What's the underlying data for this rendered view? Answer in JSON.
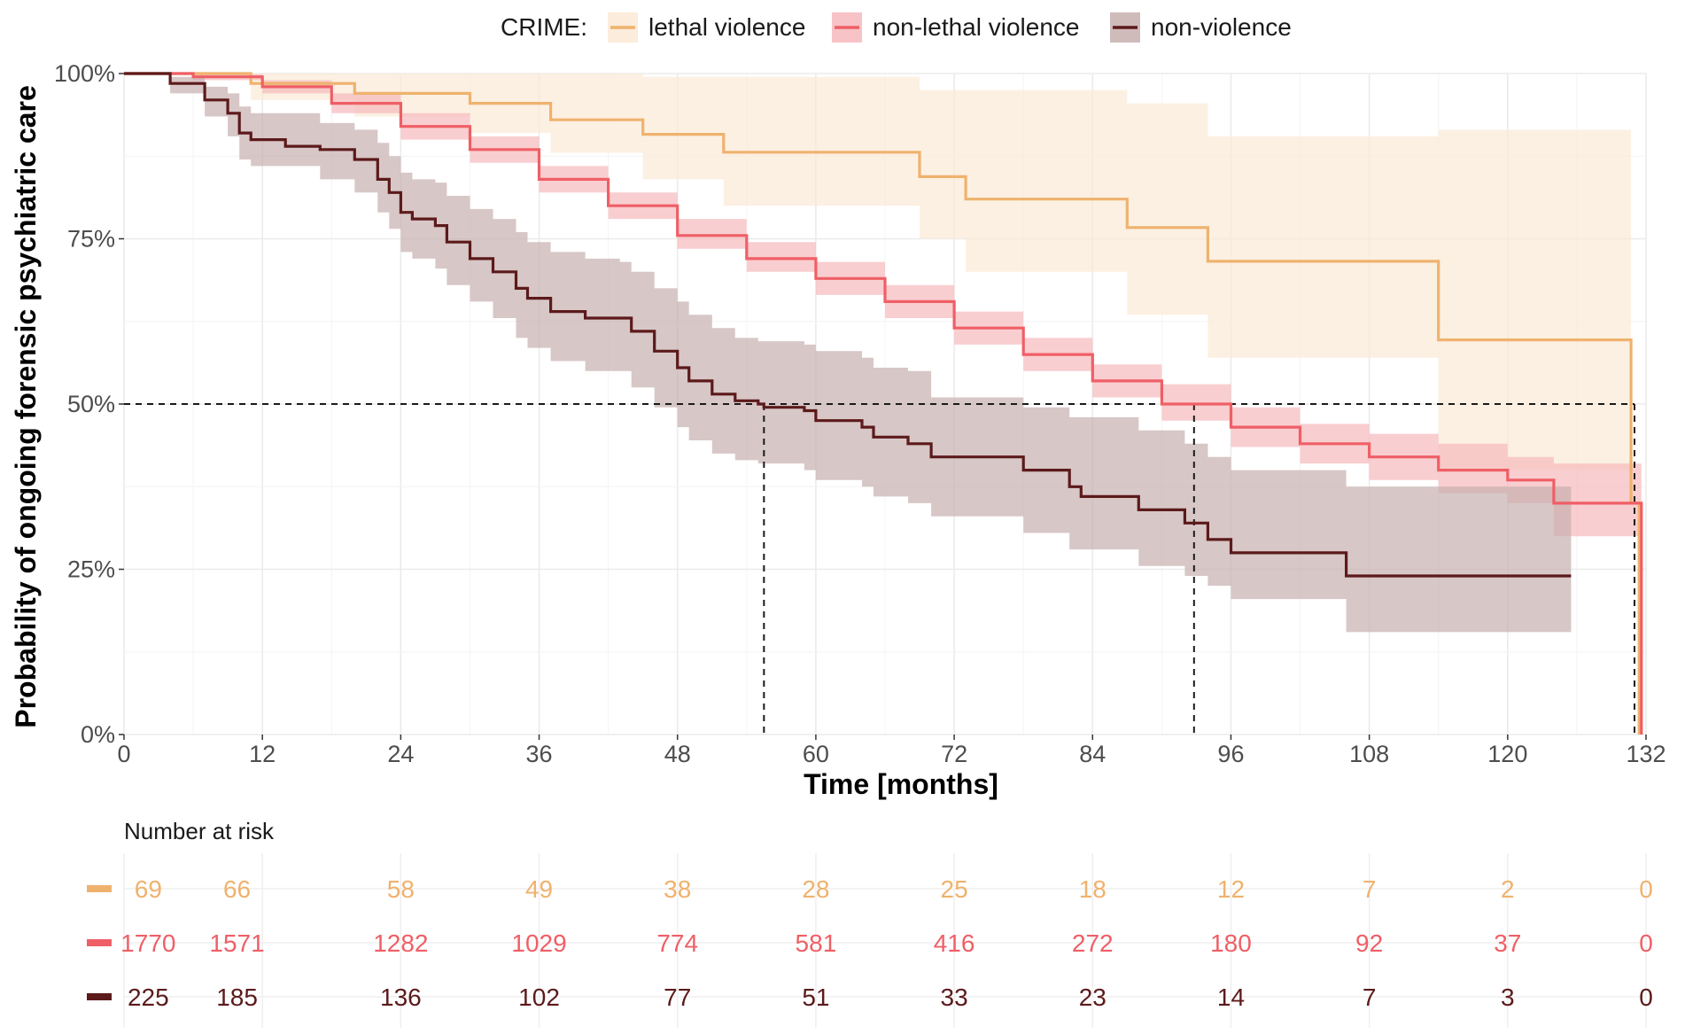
{
  "chart_data": {
    "type": "line",
    "subtype": "kaplan-meier",
    "xlabel": "Time [months]",
    "ylabel": "Probability of ongoing forensic psychiatric care",
    "xlim": [
      0,
      132
    ],
    "ylim": [
      0,
      1
    ],
    "x_ticks": [
      0,
      12,
      24,
      36,
      48,
      60,
      72,
      84,
      96,
      108,
      120,
      132
    ],
    "x_tick_labels": [
      "0",
      "12",
      "24",
      "36",
      "48",
      "60",
      "72",
      "84",
      "96",
      "108",
      "120",
      "132"
    ],
    "y_ticks": [
      0,
      0.25,
      0.5,
      0.75,
      1
    ],
    "y_tick_labels": [
      "0%",
      "25%",
      "50%",
      "75%",
      "100%"
    ],
    "grid": true,
    "legend": {
      "title": "CRIME:",
      "position": "top"
    },
    "median_lines": [
      {
        "series": "non-violence",
        "median_x": 55.5,
        "y": 0.5
      },
      {
        "series": "non-lethal violence",
        "median_x": 92.8,
        "y": 0.5
      },
      {
        "series": "lethal violence",
        "median_x": 131.0,
        "y": 0.5
      }
    ],
    "series": [
      {
        "name": "lethal violence",
        "color": "#EFB26E",
        "band_color": "#FBE9D5",
        "points": [
          [
            0,
            1
          ],
          [
            11,
            1
          ],
          [
            11,
            0.985
          ],
          [
            20,
            0.985
          ],
          [
            20,
            0.97
          ],
          [
            30,
            0.97
          ],
          [
            30,
            0.955
          ],
          [
            37,
            0.955
          ],
          [
            37,
            0.93
          ],
          [
            45,
            0.93
          ],
          [
            45,
            0.908
          ],
          [
            52,
            0.908
          ],
          [
            52,
            0.881
          ],
          [
            69,
            0.881
          ],
          [
            69,
            0.844
          ],
          [
            73,
            0.844
          ],
          [
            73,
            0.81
          ],
          [
            87,
            0.81
          ],
          [
            87,
            0.767
          ],
          [
            94,
            0.767
          ],
          [
            94,
            0.716
          ],
          [
            114,
            0.716
          ],
          [
            114,
            0.597
          ],
          [
            130.7,
            0.597
          ],
          [
            130.7,
            0.35
          ],
          [
            131.4,
            0.35
          ],
          [
            131.4,
            0
          ]
        ],
        "lower": [
          [
            0,
            1
          ],
          [
            11,
            1
          ],
          [
            11,
            0.96
          ],
          [
            20,
            0.96
          ],
          [
            20,
            0.935
          ],
          [
            30,
            0.935
          ],
          [
            30,
            0.91
          ],
          [
            37,
            0.91
          ],
          [
            37,
            0.88
          ],
          [
            45,
            0.88
          ],
          [
            45,
            0.84
          ],
          [
            52,
            0.84
          ],
          [
            52,
            0.8
          ],
          [
            69,
            0.8
          ],
          [
            69,
            0.75
          ],
          [
            73,
            0.75
          ],
          [
            73,
            0.7
          ],
          [
            87,
            0.7
          ],
          [
            87,
            0.635
          ],
          [
            94,
            0.635
          ],
          [
            94,
            0.57
          ],
          [
            114,
            0.57
          ],
          [
            114,
            0.4
          ],
          [
            130.7,
            0.4
          ]
        ],
        "upper": [
          [
            0,
            1
          ],
          [
            45,
            1
          ],
          [
            45,
            0.995
          ],
          [
            69,
            0.995
          ],
          [
            69,
            0.975
          ],
          [
            87,
            0.975
          ],
          [
            87,
            0.955
          ],
          [
            94,
            0.955
          ],
          [
            94,
            0.905
          ],
          [
            114,
            0.905
          ],
          [
            114,
            0.915
          ],
          [
            130.7,
            0.915
          ]
        ],
        "at_risk": [
          69,
          66,
          58,
          49,
          38,
          28,
          25,
          18,
          12,
          7,
          2,
          0
        ]
      },
      {
        "name": "non-lethal violence",
        "color": "#EF5F66",
        "band_color": "#F7B9BC",
        "points": [
          [
            0,
            1
          ],
          [
            6,
            0.995
          ],
          [
            12,
            0.98
          ],
          [
            18,
            0.955
          ],
          [
            24,
            0.92
          ],
          [
            30,
            0.885
          ],
          [
            36,
            0.84
          ],
          [
            42,
            0.8
          ],
          [
            48,
            0.755
          ],
          [
            54,
            0.72
          ],
          [
            60,
            0.69
          ],
          [
            66,
            0.655
          ],
          [
            72,
            0.615
          ],
          [
            78,
            0.575
          ],
          [
            84,
            0.535
          ],
          [
            90,
            0.5
          ],
          [
            96,
            0.465
          ],
          [
            102,
            0.44
          ],
          [
            108,
            0.42
          ],
          [
            114,
            0.4
          ],
          [
            120,
            0.385
          ],
          [
            124,
            0.38
          ],
          [
            124,
            0.35
          ],
          [
            131.6,
            0.35
          ],
          [
            131.6,
            0
          ]
        ],
        "lower": [
          [
            0,
            1
          ],
          [
            6,
            0.99
          ],
          [
            12,
            0.97
          ],
          [
            18,
            0.94
          ],
          [
            24,
            0.9
          ],
          [
            30,
            0.865
          ],
          [
            36,
            0.82
          ],
          [
            42,
            0.78
          ],
          [
            48,
            0.735
          ],
          [
            54,
            0.7
          ],
          [
            60,
            0.665
          ],
          [
            66,
            0.63
          ],
          [
            72,
            0.59
          ],
          [
            78,
            0.55
          ],
          [
            84,
            0.51
          ],
          [
            90,
            0.475
          ],
          [
            96,
            0.435
          ],
          [
            102,
            0.41
          ],
          [
            108,
            0.385
          ],
          [
            114,
            0.365
          ],
          [
            120,
            0.35
          ],
          [
            124,
            0.33
          ],
          [
            124,
            0.3
          ],
          [
            131.6,
            0.3
          ]
        ],
        "upper": [
          [
            0,
            1
          ],
          [
            6,
            0.999
          ],
          [
            12,
            0.99
          ],
          [
            18,
            0.97
          ],
          [
            24,
            0.94
          ],
          [
            30,
            0.905
          ],
          [
            36,
            0.86
          ],
          [
            42,
            0.82
          ],
          [
            48,
            0.78
          ],
          [
            54,
            0.745
          ],
          [
            60,
            0.715
          ],
          [
            66,
            0.68
          ],
          [
            72,
            0.64
          ],
          [
            78,
            0.6
          ],
          [
            84,
            0.56
          ],
          [
            90,
            0.53
          ],
          [
            96,
            0.495
          ],
          [
            102,
            0.47
          ],
          [
            108,
            0.455
          ],
          [
            114,
            0.44
          ],
          [
            120,
            0.42
          ],
          [
            124,
            0.41
          ],
          [
            124,
            0.41
          ],
          [
            131.6,
            0.41
          ]
        ],
        "at_risk": [
          1770,
          1571,
          1282,
          1029,
          774,
          581,
          416,
          272,
          180,
          92,
          37,
          0
        ]
      },
      {
        "name": "non-violence",
        "color": "#5C1A1B",
        "band_color": "#C8AFAF",
        "points": [
          [
            0,
            1
          ],
          [
            4,
            0.985
          ],
          [
            7,
            0.96
          ],
          [
            9,
            0.94
          ],
          [
            10,
            0.91
          ],
          [
            11,
            0.9
          ],
          [
            14,
            0.9
          ],
          [
            14,
            0.89
          ],
          [
            17,
            0.885
          ],
          [
            20,
            0.87
          ],
          [
            22,
            0.84
          ],
          [
            23,
            0.82
          ],
          [
            24,
            0.79
          ],
          [
            25,
            0.78
          ],
          [
            27,
            0.77
          ],
          [
            28,
            0.745
          ],
          [
            30,
            0.72
          ],
          [
            32,
            0.7
          ],
          [
            34,
            0.675
          ],
          [
            35,
            0.66
          ],
          [
            37,
            0.64
          ],
          [
            40,
            0.63
          ],
          [
            43,
            0.63
          ],
          [
            44,
            0.61
          ],
          [
            46,
            0.58
          ],
          [
            48,
            0.555
          ],
          [
            49,
            0.535
          ],
          [
            51,
            0.515
          ],
          [
            53,
            0.505
          ],
          [
            55,
            0.5
          ],
          [
            55.5,
            0.495
          ],
          [
            59,
            0.49
          ],
          [
            60,
            0.475
          ],
          [
            64,
            0.465
          ],
          [
            65,
            0.45
          ],
          [
            68,
            0.44
          ],
          [
            70,
            0.42
          ],
          [
            78,
            0.42
          ],
          [
            78,
            0.4
          ],
          [
            82,
            0.4
          ],
          [
            82,
            0.375
          ],
          [
            83,
            0.36
          ],
          [
            88,
            0.36
          ],
          [
            88,
            0.34
          ],
          [
            92,
            0.34
          ],
          [
            92,
            0.32
          ],
          [
            94,
            0.31
          ],
          [
            94,
            0.295
          ],
          [
            96,
            0.295
          ],
          [
            96,
            0.275
          ],
          [
            106,
            0.275
          ],
          [
            106,
            0.24
          ],
          [
            125.5,
            0.24
          ]
        ],
        "lower": [
          [
            0,
            1
          ],
          [
            4,
            0.97
          ],
          [
            7,
            0.935
          ],
          [
            9,
            0.905
          ],
          [
            10,
            0.87
          ],
          [
            11,
            0.86
          ],
          [
            14,
            0.86
          ],
          [
            17,
            0.84
          ],
          [
            20,
            0.82
          ],
          [
            22,
            0.79
          ],
          [
            23,
            0.765
          ],
          [
            24,
            0.73
          ],
          [
            25,
            0.72
          ],
          [
            27,
            0.705
          ],
          [
            28,
            0.68
          ],
          [
            30,
            0.655
          ],
          [
            32,
            0.63
          ],
          [
            34,
            0.6
          ],
          [
            35,
            0.585
          ],
          [
            37,
            0.565
          ],
          [
            40,
            0.55
          ],
          [
            43,
            0.55
          ],
          [
            44,
            0.525
          ],
          [
            46,
            0.495
          ],
          [
            48,
            0.465
          ],
          [
            49,
            0.445
          ],
          [
            51,
            0.425
          ],
          [
            53,
            0.415
          ],
          [
            55,
            0.41
          ],
          [
            59,
            0.4
          ],
          [
            60,
            0.385
          ],
          [
            64,
            0.375
          ],
          [
            65,
            0.36
          ],
          [
            68,
            0.35
          ],
          [
            70,
            0.33
          ],
          [
            78,
            0.33
          ],
          [
            78,
            0.305
          ],
          [
            82,
            0.305
          ],
          [
            82,
            0.28
          ],
          [
            88,
            0.28
          ],
          [
            88,
            0.255
          ],
          [
            92,
            0.255
          ],
          [
            92,
            0.24
          ],
          [
            94,
            0.225
          ],
          [
            96,
            0.205
          ],
          [
            106,
            0.205
          ],
          [
            106,
            0.155
          ],
          [
            125.5,
            0.155
          ]
        ],
        "upper": [
          [
            0,
            1
          ],
          [
            4,
            0.995
          ],
          [
            7,
            0.98
          ],
          [
            9,
            0.97
          ],
          [
            10,
            0.95
          ],
          [
            11,
            0.94
          ],
          [
            14,
            0.94
          ],
          [
            17,
            0.925
          ],
          [
            20,
            0.915
          ],
          [
            22,
            0.895
          ],
          [
            23,
            0.875
          ],
          [
            24,
            0.85
          ],
          [
            25,
            0.84
          ],
          [
            27,
            0.835
          ],
          [
            28,
            0.815
          ],
          [
            30,
            0.795
          ],
          [
            32,
            0.78
          ],
          [
            34,
            0.76
          ],
          [
            35,
            0.745
          ],
          [
            37,
            0.73
          ],
          [
            40,
            0.72
          ],
          [
            43,
            0.715
          ],
          [
            44,
            0.7
          ],
          [
            46,
            0.675
          ],
          [
            48,
            0.655
          ],
          [
            49,
            0.635
          ],
          [
            51,
            0.615
          ],
          [
            53,
            0.6
          ],
          [
            55,
            0.595
          ],
          [
            59,
            0.59
          ],
          [
            60,
            0.58
          ],
          [
            64,
            0.57
          ],
          [
            65,
            0.555
          ],
          [
            68,
            0.55
          ],
          [
            70,
            0.51
          ],
          [
            78,
            0.51
          ],
          [
            78,
            0.495
          ],
          [
            82,
            0.495
          ],
          [
            82,
            0.48
          ],
          [
            88,
            0.48
          ],
          [
            88,
            0.46
          ],
          [
            92,
            0.46
          ],
          [
            92,
            0.44
          ],
          [
            94,
            0.42
          ],
          [
            96,
            0.4
          ],
          [
            106,
            0.4
          ],
          [
            106,
            0.375
          ],
          [
            125.5,
            0.375
          ]
        ],
        "at_risk": [
          225,
          185,
          136,
          102,
          77,
          51,
          33,
          23,
          14,
          7,
          3,
          0
        ]
      }
    ],
    "risk_table": {
      "title": "Number at risk",
      "times": [
        2.1,
        9.8,
        24,
        36,
        48,
        60,
        72,
        84,
        96,
        108,
        120,
        132
      ]
    }
  }
}
